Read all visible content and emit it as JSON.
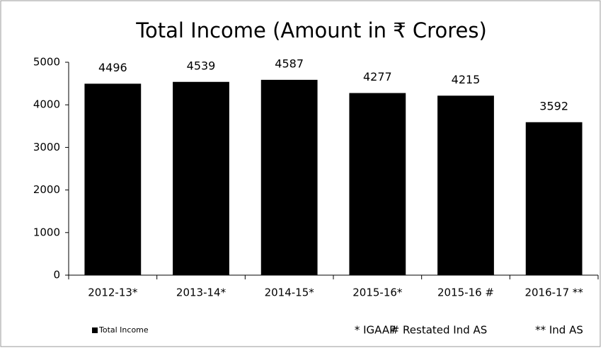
{
  "chart_data": {
    "type": "bar",
    "title": "Total Income (Amount in  ₹ Crores)",
    "categories": [
      "2012-13*",
      "2013-14*",
      "2014-15*",
      "2015-16*",
      "2015-16 #",
      "2016-17 **"
    ],
    "series": [
      {
        "name": "Total Income",
        "color": "#000000",
        "values": [
          4496,
          4539,
          4587,
          4277,
          4215,
          3592
        ]
      }
    ],
    "ylim": [
      0,
      5000
    ],
    "yticks": [
      0,
      1000,
      2000,
      3000,
      4000,
      5000
    ],
    "grid": false,
    "legend": "bottom-left",
    "annotations": [
      "* IGAAP",
      "# Restated Ind AS",
      "** Ind AS"
    ]
  }
}
